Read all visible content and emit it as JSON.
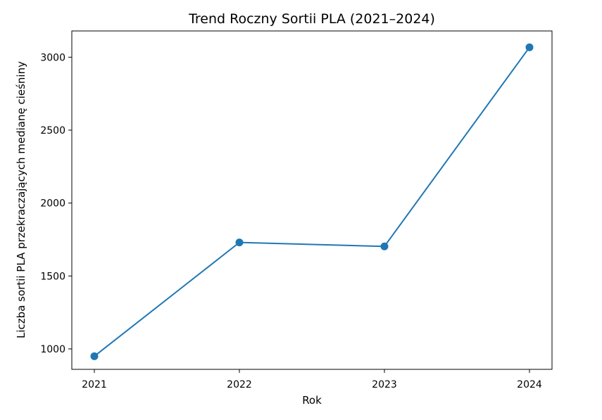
{
  "chart_data": {
    "type": "line",
    "title": "Trend Roczny Sortii PLA (2021–2024)",
    "xlabel": "Rok",
    "ylabel": "Liczba sortii PLA przekraczających medianę cieśniny",
    "x": [
      "2021",
      "2022",
      "2023",
      "2024"
    ],
    "series": [
      {
        "values": [
          950,
          1730,
          1703,
          3068
        ]
      }
    ],
    "ylim": [
      860,
      3180
    ],
    "yticks": [
      1000,
      1500,
      2000,
      2500,
      3000
    ],
    "grid": false,
    "marker": "circle",
    "color": "#1f77b4"
  }
}
